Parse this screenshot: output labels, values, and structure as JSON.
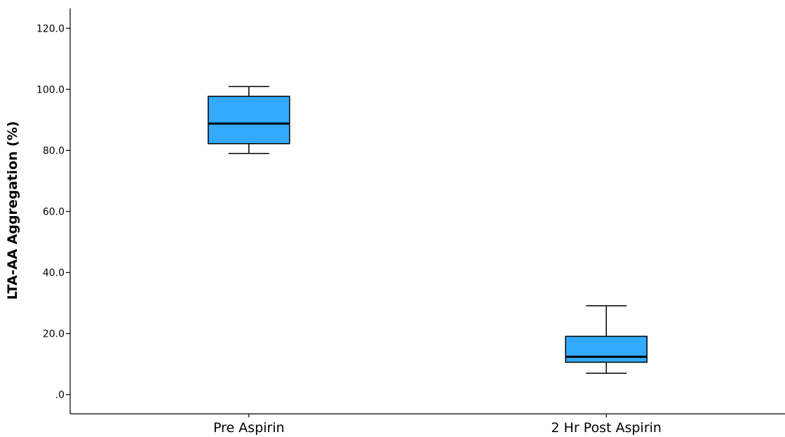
{
  "chart_data": {
    "type": "boxplot",
    "xlabel": "",
    "ylabel": "LTA-AA Aggregation (%)",
    "ylim": [
      -6.3,
      126.5
    ],
    "yticks": [
      0,
      20,
      40,
      60,
      80,
      100,
      120
    ],
    "ytick_labels": [
      ".0",
      "20.0",
      "40.0",
      "60.0",
      "80.0",
      "100.0",
      "120.0"
    ],
    "categories": [
      "Pre Aspirin",
      "2 Hr Post Aspirin"
    ],
    "boxes": [
      {
        "category": "Pre Aspirin",
        "whisker_low": 79,
        "q1": 82.2,
        "median": 88.8,
        "q3": 97.7,
        "whisker_high": 100.9
      },
      {
        "category": "2 Hr Post Aspirin",
        "whisker_low": 7.0,
        "q1": 10.6,
        "median": 12.4,
        "q3": 19.1,
        "whisker_high": 29.1
      }
    ],
    "box_color": "#33aaff",
    "grid": false,
    "legend": "none"
  }
}
